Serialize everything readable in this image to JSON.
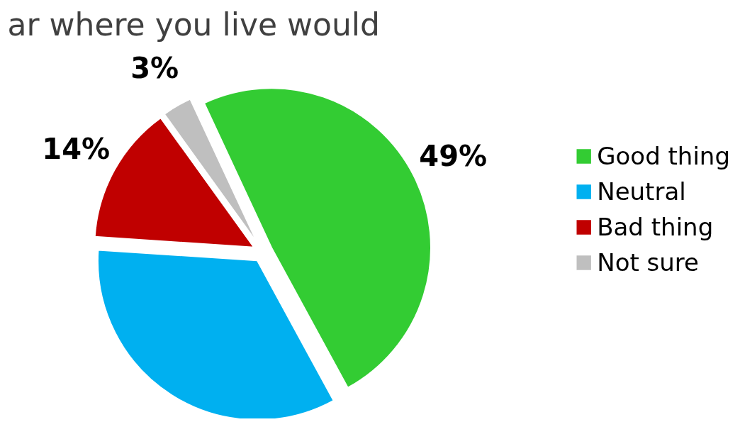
{
  "chart_data": {
    "type": "pie",
    "title": "ar where you live would",
    "categories": [
      "Good thing",
      "Neutral",
      "Bad thing",
      "Not sure"
    ],
    "values": [
      49,
      34,
      14,
      3
    ],
    "colors": [
      "#33cc33",
      "#00b0f0",
      "#c00000",
      "#bfbfbf"
    ],
    "value_labels": [
      "49%",
      null,
      "14%",
      "3%"
    ],
    "legend": "right"
  }
}
